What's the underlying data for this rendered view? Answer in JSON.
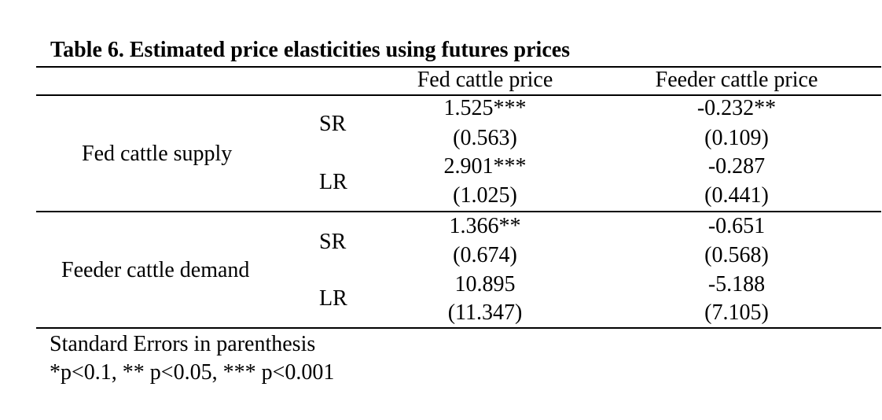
{
  "table": {
    "title": "Table 6. Estimated price elasticities using futures prices",
    "columns": [
      "Fed cattle price",
      "Feeder cattle price"
    ],
    "groups": [
      {
        "label": "Fed cattle supply",
        "rows": [
          {
            "term": "SR",
            "fed": "1.525***",
            "fed_se": "(0.563)",
            "feeder": "-0.232**",
            "feeder_se": "(0.109)"
          },
          {
            "term": "LR",
            "fed": "2.901***",
            "fed_se": "(1.025)",
            "feeder": "-0.287",
            "feeder_se": "(0.441)"
          }
        ]
      },
      {
        "label": "Feeder cattle demand",
        "rows": [
          {
            "term": "SR",
            "fed": "1.366**",
            "fed_se": "(0.674)",
            "feeder": "-0.651",
            "feeder_se": "(0.568)"
          },
          {
            "term": "LR",
            "fed": "10.895",
            "fed_se": "(11.347)",
            "feeder": "-5.188",
            "feeder_se": "(7.105)"
          }
        ]
      }
    ],
    "notes": [
      "Standard Errors in parenthesis",
      "*p<0.1, ** p<0.05, *** p<0.001"
    ]
  }
}
